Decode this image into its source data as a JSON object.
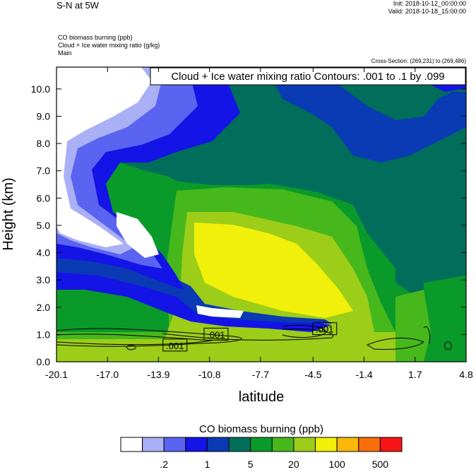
{
  "header": {
    "main_title": "S-N at 5W",
    "init": "Init: 2018-10-12_00:00:00",
    "valid": "Valid: 2018-10-18_15:00:00",
    "field1": "CO biomass burning   (ppb)",
    "field2": "Cloud + Ice water mixing ratio   (g/kg)",
    "field3": "Main",
    "cross_section": "Cross-Section: (269,231) to (269,486)"
  },
  "chart_data": {
    "type": "heatmap",
    "title": "Cloud + Ice water mixing ratio Contours: .001 to .1 by .099",
    "xlabel": "latitude",
    "ylabel": "Height (km)",
    "xlim": [
      -20.1,
      4.8
    ],
    "ylim": [
      0.0,
      10.8
    ],
    "x_ticks": [
      "-20.1",
      "-17.0",
      "-13.9",
      "-10.8",
      "-7.7",
      "-4.5",
      "-1.4",
      "1.7",
      "4.8"
    ],
    "y_ticks": [
      "0.0",
      "1.0",
      "2.0",
      "3.0",
      "4.0",
      "5.0",
      "6.0",
      "7.0",
      "8.0",
      "9.0",
      "10.0"
    ],
    "contour_labels": [
      {
        "text": ".001",
        "x": -10.4,
        "y": 1.0
      },
      {
        "text": ".001",
        "x": -12.9,
        "y": 0.6
      },
      {
        "text": ".001",
        "x": -3.8,
        "y": 1.2
      }
    ],
    "colorbar": {
      "title": "CO biomass burning   (ppb)",
      "labels": [
        ".2",
        "1",
        "5",
        "20",
        "100",
        "500"
      ],
      "colors": [
        "#ffffff",
        "#aab0f5",
        "#5b64f0",
        "#1414e6",
        "#0a3ab4",
        "#006e5a",
        "#0a9a2a",
        "#46b81c",
        "#9ccd18",
        "#f0f00a",
        "#f9b80a",
        "#f86e0a",
        "#f81414"
      ]
    }
  }
}
